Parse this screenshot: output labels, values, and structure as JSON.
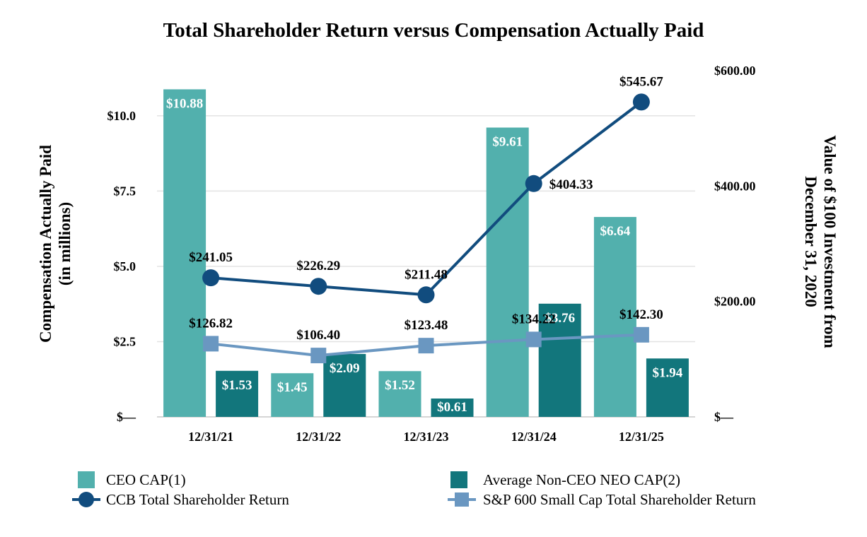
{
  "chart_data": {
    "type": "bar",
    "title": "Total Shareholder Return versus Compensation Actually Paid",
    "categories": [
      "12/31/21",
      "12/31/22",
      "12/31/23",
      "12/31/24",
      "12/31/25"
    ],
    "y_left": {
      "label_line1": "Compensation Actually Paid",
      "label_line2": "(in millions)",
      "range": [
        0,
        11.5
      ],
      "ticks": [
        0,
        2.5,
        5.0,
        7.5,
        10.0
      ],
      "tick_labels": [
        "$—",
        "$2.5",
        "$5.0",
        "$7.5",
        "$10.0"
      ]
    },
    "y_right": {
      "label_line1": "Value of $100 Investment from",
      "label_line2": "December 31, 2020",
      "range": [
        0,
        600
      ],
      "ticks": [
        0,
        200,
        400,
        600
      ],
      "tick_labels": [
        "$—",
        "$200.00",
        "$400.00",
        "$600.00"
      ]
    },
    "bar_series": [
      {
        "name": "CEO CAP(1)",
        "color": "#52b0ad",
        "values": [
          10.88,
          1.45,
          1.52,
          9.61,
          6.64
        ],
        "labels": [
          "$10.88",
          "$1.45",
          "$1.52",
          "$9.61",
          "$6.64"
        ]
      },
      {
        "name": "Average Non-CEO NEO CAP(2)",
        "color": "#12767c",
        "values": [
          1.53,
          2.09,
          0.61,
          3.76,
          1.94
        ],
        "labels": [
          "$1.53",
          "$2.09",
          "$0.61",
          "$3.76",
          "$1.94"
        ]
      }
    ],
    "line_series": [
      {
        "name": "CCB Total Shareholder Return",
        "color": "#114c7e",
        "marker": "circle",
        "values": [
          241.05,
          226.29,
          211.48,
          404.33,
          545.67
        ],
        "labels": [
          "$241.05",
          "$226.29",
          "$211.48",
          "$404.33",
          "$545.67"
        ]
      },
      {
        "name": "S&P 600 Small Cap Total Shareholder Return",
        "color": "#6a97c1",
        "marker": "square",
        "values": [
          126.82,
          106.4,
          123.48,
          134.22,
          142.3
        ],
        "labels": [
          "$126.82",
          "$106.40",
          "$123.48",
          "$134.22",
          "$142.30"
        ]
      }
    ],
    "legend": {
      "position": "bottom",
      "items": [
        "CEO CAP(1)",
        "Average Non-CEO NEO CAP(2)",
        "CCB Total Shareholder Return",
        "S&P 600 Small Cap Total Shareholder Return"
      ]
    },
    "grid": true
  }
}
